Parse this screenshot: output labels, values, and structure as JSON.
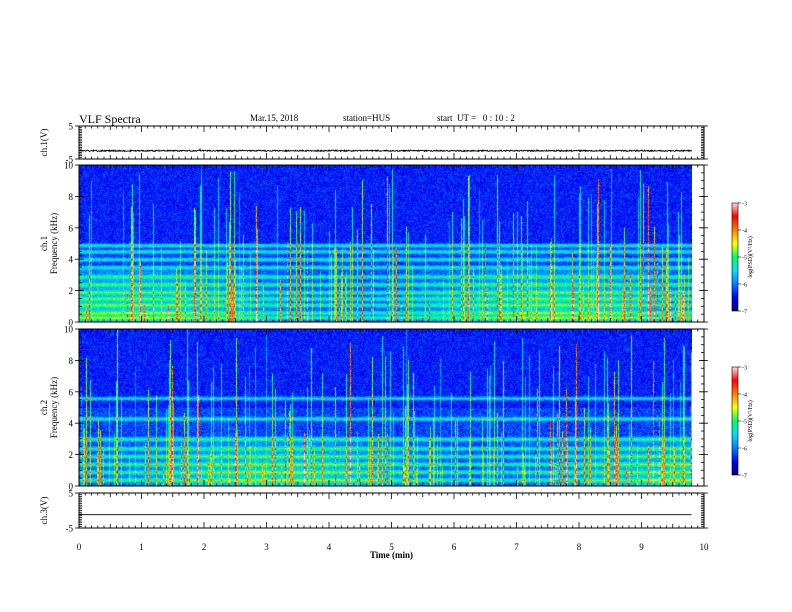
{
  "header": {
    "title": "VLF Spectra",
    "date": "Mar.15, 2018",
    "station": "station=HUS",
    "start_ut": "start  UT =   0 : 10 : 2"
  },
  "chart_data": [
    {
      "type": "line",
      "name": "ch.1 waveform",
      "ylabel": "ch.1(V)",
      "ylim": [
        -5,
        5
      ],
      "yticks": [
        5,
        -5
      ],
      "x_range": [
        0,
        10
      ],
      "trace_level_v": -2.5,
      "trace_noise_v": 0.4
    },
    {
      "type": "heatmap",
      "name": "ch.1 spectrogram",
      "ylabel_top": "ch.1",
      "ylabel": "Frequency (kHz)",
      "ylim": [
        0,
        10
      ],
      "yticks": [
        0,
        2,
        4,
        6,
        8,
        10
      ],
      "x_range": [
        0,
        9.8
      ],
      "colorbar": {
        "label": "log(PSD)(V²/Hz)",
        "range": [
          -7,
          -3
        ],
        "ticks": [
          -3,
          -4,
          -5,
          -6,
          -7
        ]
      },
      "bands_khz": [
        0.3,
        0.6,
        1.1,
        1.5,
        1.9,
        2.4,
        2.9,
        3.5,
        4.0,
        4.5,
        4.9
      ],
      "hiss_top_khz": 3.4
    },
    {
      "type": "heatmap",
      "name": "ch.2 spectrogram",
      "ylabel_top": "ch.2",
      "ylabel": "Frequency (kHz)",
      "ylim": [
        0,
        10
      ],
      "yticks": [
        0,
        2,
        4,
        6,
        8,
        10
      ],
      "x_range": [
        0,
        9.8
      ],
      "colorbar": {
        "label": "log(PSD)(V²/Hz)",
        "range": [
          -7,
          -3
        ],
        "ticks": [
          -3,
          -4,
          -5,
          -6,
          -7
        ]
      },
      "bands_khz": [
        0.4,
        0.9,
        1.4,
        1.9,
        2.4,
        3.0,
        4.3,
        5.6
      ],
      "hiss_top_khz": 3.2
    },
    {
      "type": "line",
      "name": "ch.3 waveform",
      "ylabel": "ch.3(V)",
      "ylim": [
        -5,
        5
      ],
      "yticks": [
        5,
        -5
      ],
      "x_range": [
        0,
        9.8
      ],
      "trace_level_v": -1.2
    }
  ],
  "x_axis": {
    "label": "Time (min)",
    "ticks": [
      "0",
      "1",
      "2",
      "3",
      "4",
      "5",
      "6",
      "7",
      "8",
      "9",
      "10"
    ],
    "range": [
      0,
      10
    ]
  },
  "colors": {
    "palette": [
      "#00007a",
      "#0000ff",
      "#0080ff",
      "#00e0ff",
      "#00ff60",
      "#ffff00",
      "#ff8000",
      "#ff0000",
      "#ffe0e0"
    ],
    "trace": "#000000"
  }
}
